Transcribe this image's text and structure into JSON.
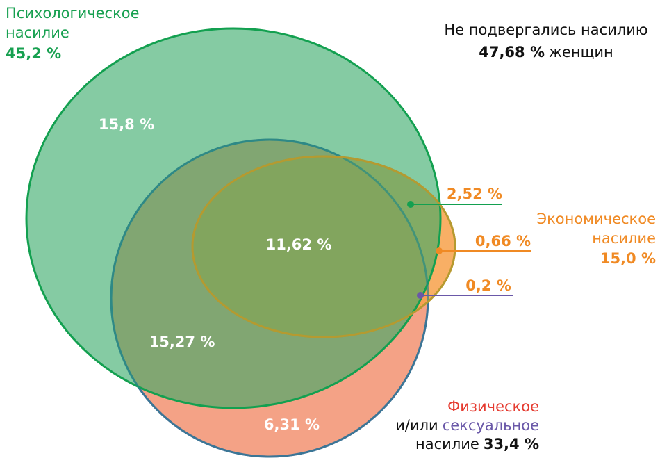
{
  "outside": {
    "label": "Не подвергались насилию",
    "value": "47,68 %",
    "suffix": "женщин"
  },
  "sets": [
    {
      "lines": [
        "Психологическое",
        "насилие"
      ],
      "value": "45,2 %"
    },
    {
      "lines": [
        "Экономическое",
        "насилие"
      ],
      "value": "15,0 %"
    },
    {
      "lines": [
        "Физическое",
        "и/или",
        "сексуальное",
        "насилие"
      ],
      "value": "33,4 %"
    }
  ],
  "regions": [
    "15,8 %",
    "11,62 %",
    "15,27 %",
    "6,31 %",
    "2,52 %",
    "0,66 %",
    "0,2 %"
  ]
}
